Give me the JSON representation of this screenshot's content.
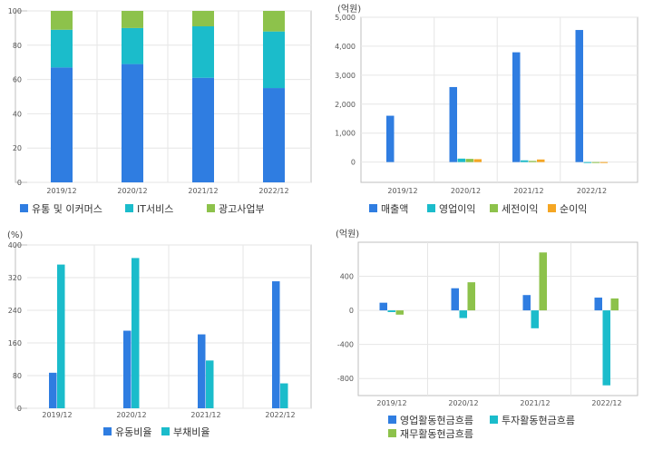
{
  "colors": {
    "blue": "#2f7de1",
    "cyan": "#1bbccb",
    "green": "#8dc24b",
    "orange": "#f5a623"
  },
  "chart_data": [
    {
      "id": "revenue-mix",
      "type": "bar",
      "stacked": true,
      "title": "",
      "unit_label": "",
      "categories": [
        "2019/12",
        "2020/12",
        "2021/12",
        "2022/12"
      ],
      "ylim": [
        0,
        100
      ],
      "yticks": [
        "0",
        "20",
        "40",
        "60",
        "80",
        "100"
      ],
      "grid": true,
      "legend_position": "bottom",
      "series": [
        {
          "name": "유통 및 이커머스",
          "color": "#2f7de1",
          "values": [
            67,
            69,
            61,
            55
          ]
        },
        {
          "name": "IT서비스",
          "color": "#1bbccb",
          "values": [
            22,
            21,
            30,
            33
          ]
        },
        {
          "name": "광고사업부",
          "color": "#8dc24b",
          "values": [
            11,
            10,
            9,
            12
          ]
        }
      ]
    },
    {
      "id": "income",
      "type": "bar",
      "stacked": false,
      "title": "",
      "unit_label": "(억원)",
      "categories": [
        "2019/12",
        "2020/12",
        "2021/12",
        "2022/12"
      ],
      "ylim": [
        -700,
        5000
      ],
      "yticks": [
        "0",
        "1,000",
        "2,000",
        "3,000",
        "4,000",
        "5,000"
      ],
      "grid": true,
      "legend_position": "bottom",
      "series": [
        {
          "name": "매출액",
          "color": "#2f7de1",
          "values": [
            1600,
            2590,
            3790,
            4560
          ]
        },
        {
          "name": "영업이익",
          "color": "#1bbccb",
          "values": [
            null,
            120,
            60,
            -30
          ]
        },
        {
          "name": "세전이익",
          "color": "#8dc24b",
          "values": [
            null,
            110,
            40,
            -30
          ]
        },
        {
          "name": "순이익",
          "color": "#f5a623",
          "values": [
            null,
            100,
            90,
            -20
          ]
        }
      ]
    },
    {
      "id": "ratios",
      "type": "bar",
      "stacked": false,
      "title": "",
      "unit_label": "(%)",
      "categories": [
        "2019/12",
        "2020/12",
        "2021/12",
        "2022/12"
      ],
      "ylim": [
        0,
        400
      ],
      "yticks": [
        "0",
        "80",
        "160",
        "240",
        "320",
        "400"
      ],
      "grid": true,
      "legend_position": "bottom",
      "series": [
        {
          "name": "유동비율",
          "color": "#2f7de1",
          "values": [
            87,
            190,
            181,
            311
          ]
        },
        {
          "name": "부채비율",
          "color": "#1bbccb",
          "values": [
            352,
            368,
            117,
            61
          ]
        }
      ]
    },
    {
      "id": "cashflow",
      "type": "bar",
      "stacked": false,
      "title": "",
      "unit_label": "(억원)",
      "categories": [
        "2019/12",
        "2020/12",
        "2021/12",
        "2022/12"
      ],
      "ylim": [
        -1000,
        800
      ],
      "yticks": [
        "-800",
        "-400",
        "0",
        "400"
      ],
      "grid": true,
      "legend_position": "bottom",
      "series": [
        {
          "name": "영업활동현금흐름",
          "color": "#2f7de1",
          "values": [
            90,
            260,
            180,
            150
          ]
        },
        {
          "name": "투자활동현금흐름",
          "color": "#1bbccb",
          "values": [
            -20,
            -90,
            -210,
            -880
          ]
        },
        {
          "name": "재무활동현금흐름",
          "color": "#8dc24b",
          "values": [
            -50,
            330,
            680,
            140
          ]
        }
      ]
    }
  ]
}
